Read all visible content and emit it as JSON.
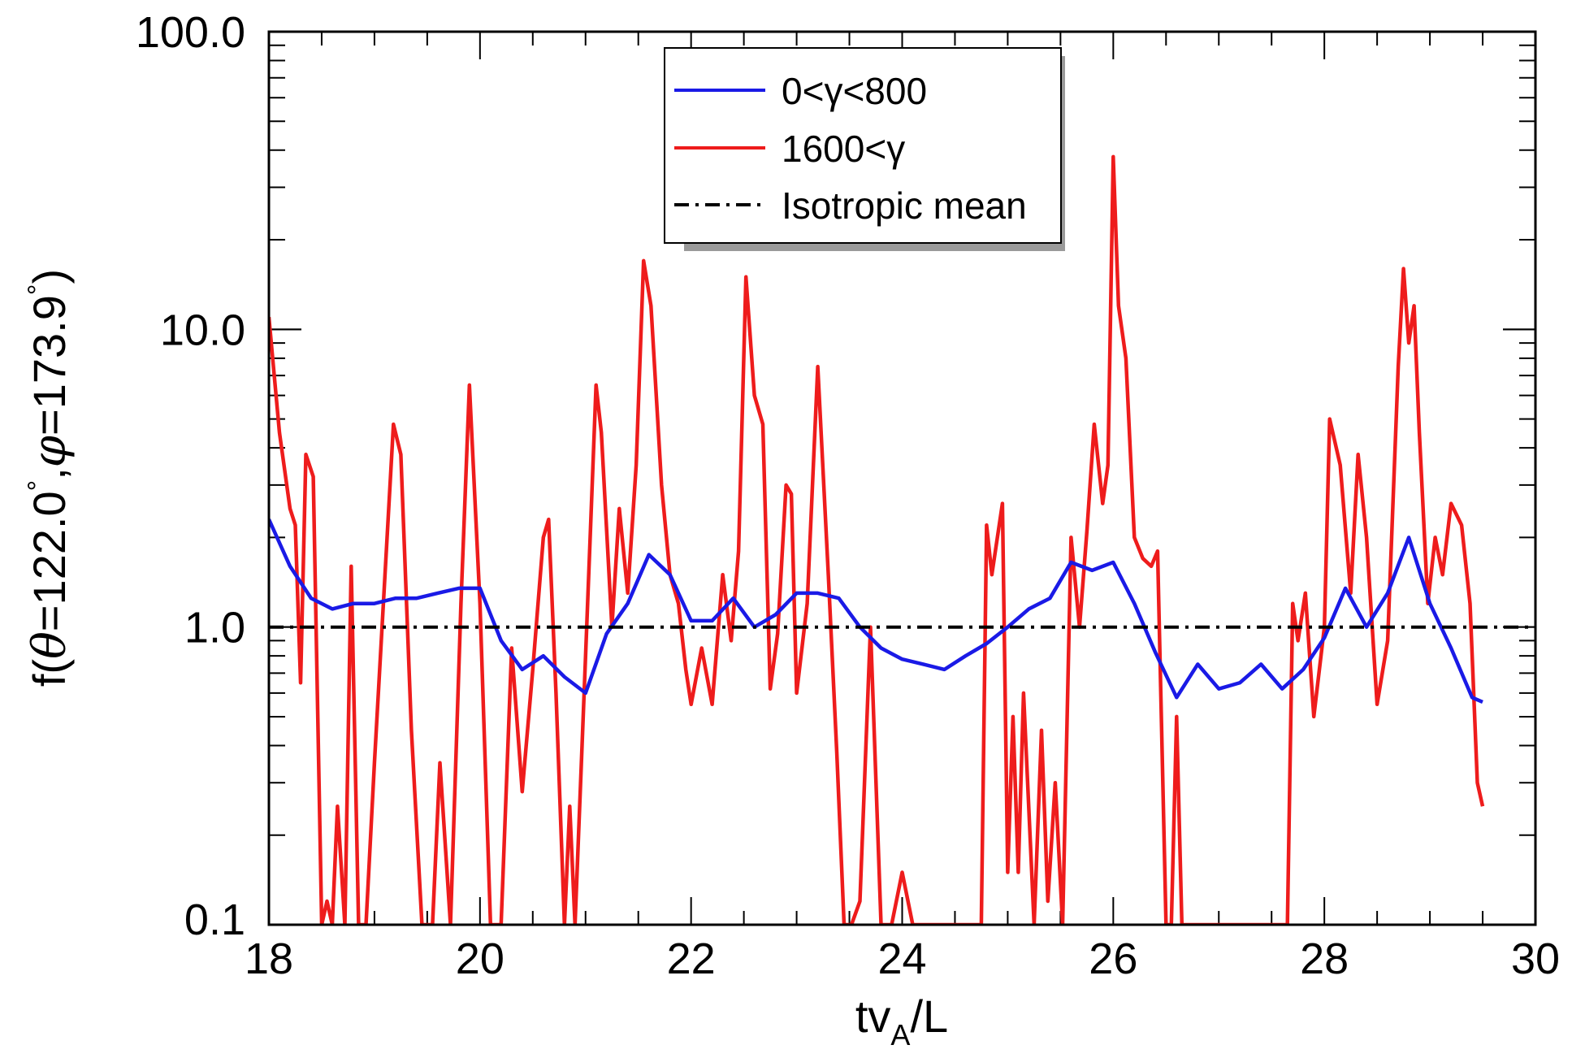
{
  "chart_data": {
    "type": "line",
    "title": "",
    "xlabel": "tv_A/L",
    "xlabel_main": "tv",
    "xlabel_sub": "A",
    "xlabel_tail": "/L",
    "ylabel": "f(θ=122.0°,φ=173.9°)",
    "ylabel_prefix": "f(",
    "ylabel_theta": "θ",
    "ylabel_mid1": "=122.0",
    "ylabel_deg": "°",
    "ylabel_sep": ",",
    "ylabel_phi": "φ",
    "ylabel_mid2": "=173.9",
    "ylabel_suffix": ")",
    "xlim": [
      18,
      30
    ],
    "ylim": [
      0.1,
      100
    ],
    "yscale": "log",
    "x_ticks": [
      18,
      20,
      22,
      24,
      26,
      28,
      30
    ],
    "x_tick_labels": [
      "18",
      "20",
      "22",
      "24",
      "26",
      "28",
      "30"
    ],
    "y_ticks": [
      0.1,
      1,
      10,
      100
    ],
    "y_tick_labels": [
      "0.1",
      "1.0",
      "10.0",
      "100.0"
    ],
    "legend_position": "top-center",
    "series": [
      {
        "name": "0<γ<800",
        "color": "#1a1ae6",
        "style": "solid",
        "x": [
          18.0,
          18.2,
          18.4,
          18.6,
          18.8,
          19.0,
          19.2,
          19.4,
          19.6,
          19.8,
          20.0,
          20.2,
          20.4,
          20.6,
          20.8,
          21.0,
          21.2,
          21.4,
          21.6,
          21.8,
          22.0,
          22.2,
          22.4,
          22.6,
          22.8,
          23.0,
          23.2,
          23.4,
          23.6,
          23.8,
          24.0,
          24.2,
          24.4,
          24.6,
          24.8,
          25.0,
          25.2,
          25.4,
          25.6,
          25.8,
          26.0,
          26.2,
          26.4,
          26.6,
          26.8,
          27.0,
          27.2,
          27.4,
          27.6,
          27.8,
          28.0,
          28.2,
          28.4,
          28.6,
          28.8,
          29.0,
          29.2,
          29.4,
          29.5
        ],
        "values": [
          2.3,
          1.6,
          1.25,
          1.15,
          1.2,
          1.2,
          1.25,
          1.25,
          1.3,
          1.35,
          1.35,
          0.9,
          0.72,
          0.8,
          0.68,
          0.6,
          0.95,
          1.2,
          1.75,
          1.5,
          1.05,
          1.05,
          1.25,
          1.0,
          1.1,
          1.3,
          1.3,
          1.25,
          1.0,
          0.85,
          0.78,
          0.75,
          0.72,
          0.8,
          0.88,
          1.0,
          1.15,
          1.25,
          1.65,
          1.55,
          1.65,
          1.2,
          0.82,
          0.58,
          0.75,
          0.62,
          0.65,
          0.75,
          0.62,
          0.72,
          0.92,
          1.35,
          1.0,
          1.3,
          2.0,
          1.2,
          0.85,
          0.58,
          0.56
        ]
      },
      {
        "name": "1600<γ",
        "color": "#ee1c1c",
        "style": "solid",
        "x": [
          18.0,
          18.1,
          18.2,
          18.25,
          18.3,
          18.35,
          18.42,
          18.5,
          18.55,
          18.6,
          18.65,
          18.72,
          18.78,
          18.85,
          18.92,
          19.0,
          19.1,
          19.18,
          19.25,
          19.35,
          19.45,
          19.55,
          19.62,
          19.72,
          19.82,
          19.9,
          20.0,
          20.1,
          20.2,
          20.3,
          20.4,
          20.5,
          20.6,
          20.65,
          20.72,
          20.8,
          20.85,
          20.9,
          21.0,
          21.1,
          21.15,
          21.25,
          21.32,
          21.4,
          21.48,
          21.55,
          21.62,
          21.72,
          21.8,
          21.88,
          21.95,
          22.0,
          22.1,
          22.2,
          22.3,
          22.38,
          22.45,
          22.52,
          22.6,
          22.68,
          22.75,
          22.82,
          22.9,
          22.95,
          23.0,
          23.1,
          23.2,
          23.3,
          23.38,
          23.45,
          23.52,
          23.6,
          23.7,
          23.8,
          23.9,
          24.0,
          24.1,
          24.3,
          24.6,
          24.75,
          24.8,
          24.85,
          24.95,
          25.0,
          25.05,
          25.1,
          25.15,
          25.25,
          25.32,
          25.38,
          25.45,
          25.52,
          25.6,
          25.68,
          25.75,
          25.82,
          25.9,
          25.95,
          26.0,
          26.05,
          26.12,
          26.2,
          26.28,
          26.36,
          26.42,
          26.5,
          26.55,
          26.6,
          26.65,
          26.72,
          26.8,
          27.0,
          27.2,
          27.4,
          27.65,
          27.7,
          27.75,
          27.82,
          27.9,
          28.0,
          28.05,
          28.15,
          28.25,
          28.32,
          28.4,
          28.5,
          28.6,
          28.7,
          28.75,
          28.8,
          28.85,
          28.9,
          28.98,
          29.05,
          29.12,
          29.2,
          29.3,
          29.38,
          29.45,
          29.5
        ],
        "values": [
          11.0,
          4.5,
          2.5,
          2.2,
          0.65,
          3.8,
          3.2,
          0.1,
          0.12,
          0.1,
          0.25,
          0.1,
          1.6,
          0.1,
          0.1,
          0.35,
          1.5,
          4.8,
          3.8,
          0.45,
          0.1,
          0.1,
          0.35,
          0.1,
          1.2,
          6.5,
          1.2,
          0.1,
          0.1,
          0.85,
          0.28,
          0.72,
          2.0,
          2.3,
          0.6,
          0.1,
          0.25,
          0.1,
          0.8,
          6.5,
          4.5,
          1.0,
          2.5,
          1.3,
          3.5,
          17.0,
          12.0,
          3.0,
          1.5,
          1.2,
          0.72,
          0.55,
          0.85,
          0.55,
          1.5,
          0.9,
          1.8,
          15.0,
          6.0,
          4.8,
          0.62,
          0.95,
          3.0,
          2.8,
          0.6,
          1.2,
          7.5,
          1.5,
          0.38,
          0.1,
          0.1,
          0.12,
          1.0,
          0.1,
          0.1,
          0.15,
          0.1,
          0.1,
          0.1,
          0.1,
          2.2,
          1.5,
          2.6,
          0.15,
          0.5,
          0.15,
          0.6,
          0.1,
          0.45,
          0.12,
          0.3,
          0.1,
          2.0,
          1.0,
          2.1,
          4.8,
          2.6,
          3.5,
          38.0,
          12.0,
          8.0,
          2.0,
          1.7,
          1.6,
          1.8,
          0.1,
          0.1,
          0.5,
          0.1,
          0.1,
          0.1,
          0.1,
          0.1,
          0.1,
          0.1,
          1.2,
          0.9,
          1.3,
          0.5,
          1.0,
          5.0,
          3.5,
          1.3,
          3.8,
          2.0,
          0.55,
          0.9,
          7.5,
          16.0,
          9.0,
          12.0,
          4.5,
          1.2,
          2.0,
          1.5,
          2.6,
          2.2,
          1.2,
          0.3,
          0.25
        ]
      },
      {
        "name": "Isotropic mean",
        "color": "#000000",
        "style": "dashdot",
        "x": [
          18.0,
          30.0
        ],
        "values": [
          1.0,
          1.0
        ]
      }
    ]
  }
}
